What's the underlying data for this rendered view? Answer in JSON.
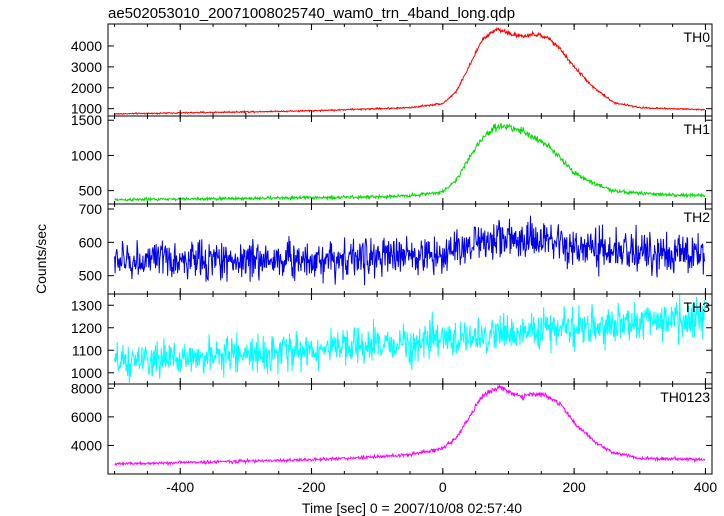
{
  "chart_data": {
    "type": "line",
    "title": "ae502053010_20071008025740_wam0_trn_4band_long.qdp",
    "ylabel": "Counts/sec",
    "xlabel": "Time [sec] 0 = 2007/10/08 02:57:40",
    "xlim": [
      -510,
      410
    ],
    "x_ticks": [
      -400,
      -200,
      0,
      200,
      400
    ],
    "panels": [
      {
        "name": "TH0",
        "color": "#ff0000",
        "ylim": [
          650,
          5050
        ],
        "y_ticks": [
          1000,
          2000,
          3000,
          4000
        ],
        "series": {
          "x": [
            -500,
            -400,
            -300,
            -200,
            -100,
            -50,
            0,
            20,
            40,
            60,
            80,
            90,
            100,
            120,
            140,
            160,
            180,
            200,
            230,
            260,
            300,
            350,
            400
          ],
          "y": [
            750,
            800,
            850,
            900,
            1000,
            1050,
            1250,
            1800,
            3000,
            4300,
            4800,
            4750,
            4600,
            4450,
            4550,
            4400,
            3800,
            3000,
            2000,
            1300,
            1050,
            1000,
            950
          ]
        }
      },
      {
        "name": "TH1",
        "color": "#00dd00",
        "ylim": [
          310,
          1560
        ],
        "y_ticks": [
          500,
          1000,
          1500
        ],
        "series": {
          "x": [
            -500,
            -400,
            -300,
            -200,
            -100,
            -50,
            0,
            20,
            40,
            60,
            80,
            90,
            100,
            120,
            140,
            160,
            180,
            200,
            230,
            260,
            300,
            350,
            400
          ],
          "y": [
            370,
            380,
            390,
            400,
            410,
            430,
            480,
            650,
            950,
            1250,
            1400,
            1430,
            1400,
            1350,
            1250,
            1150,
            950,
            750,
            600,
            500,
            460,
            440,
            430
          ]
        }
      },
      {
        "name": "TH2",
        "color": "#0000ee",
        "ylim": [
          445,
          715
        ],
        "y_ticks": [
          500,
          600,
          700
        ],
        "series": {
          "x": [
            -500,
            -400,
            -300,
            -200,
            -100,
            0,
            50,
            80,
            100,
            150,
            200,
            300,
            400
          ],
          "y": [
            545,
            545,
            548,
            550,
            555,
            565,
            600,
            615,
            610,
            600,
            580,
            570,
            565
          ]
        }
      },
      {
        "name": "TH3",
        "color": "#00ffff",
        "ylim": [
          950,
          1350
        ],
        "y_ticks": [
          1000,
          1100,
          1200,
          1300
        ],
        "series": {
          "x": [
            -500,
            -400,
            -300,
            -200,
            -100,
            0,
            100,
            200,
            300,
            400
          ],
          "y": [
            1040,
            1065,
            1085,
            1100,
            1120,
            1145,
            1175,
            1200,
            1225,
            1250
          ]
        }
      },
      {
        "name": "TH0123",
        "color": "#ff00ff",
        "ylim": [
          2000,
          8300
        ],
        "y_ticks": [
          4000,
          6000,
          8000
        ],
        "series": {
          "x": [
            -500,
            -400,
            -300,
            -200,
            -100,
            -50,
            0,
            20,
            40,
            60,
            80,
            90,
            100,
            120,
            140,
            160,
            180,
            200,
            230,
            260,
            300,
            350,
            400
          ],
          "y": [
            2700,
            2800,
            2900,
            3000,
            3200,
            3350,
            3800,
            4500,
            6000,
            7400,
            8000,
            8000,
            7800,
            7400,
            7600,
            7500,
            6800,
            5600,
            4300,
            3500,
            3100,
            3050,
            3000
          ]
        }
      }
    ]
  }
}
